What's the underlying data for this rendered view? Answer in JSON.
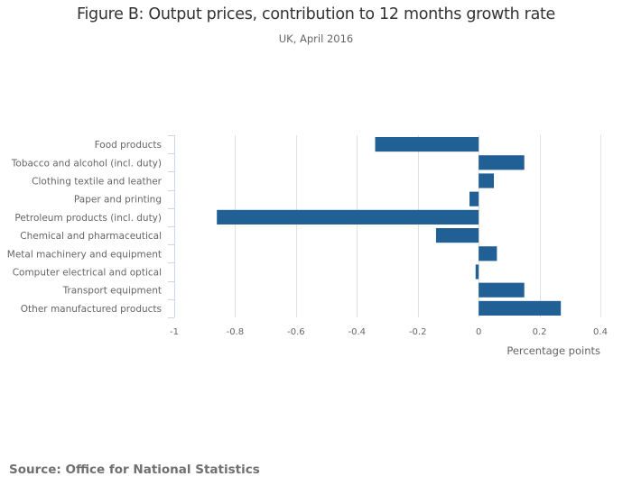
{
  "chart_data": {
    "type": "bar",
    "orientation": "horizontal",
    "title": "Figure B: Output prices, contribution to 12 months growth rate",
    "subtitle": "UK, April 2016",
    "categories": [
      "Food products",
      "Tobacco and alcohol (incl. duty)",
      "Clothing textile and leather",
      "Paper and printing",
      "Petroleum products (incl. duty)",
      "Chemical and pharmaceutical",
      "Metal machinery and equipment",
      "Computer electrical and optical",
      "Transport equipment",
      "Other manufactured products"
    ],
    "values": [
      -0.34,
      0.15,
      0.05,
      -0.03,
      -0.86,
      -0.14,
      0.06,
      -0.01,
      0.15,
      0.27
    ],
    "xlabel": "Percentage points",
    "ylabel": "",
    "xlim": [
      -1,
      0.4
    ],
    "xticks": [
      -1,
      -0.8,
      -0.6,
      -0.4,
      -0.2,
      0,
      0.2,
      0.4
    ],
    "xtick_labels": [
      "-1",
      "-0.8",
      "-0.6",
      "-0.4",
      "-0.2",
      "0",
      "0.2",
      "0.4"
    ],
    "grid": true,
    "legend": "none",
    "bar_color": "#206095",
    "grid_color": "#e0e0e0",
    "axis_color": "#ccd6eb"
  },
  "source": "Source: Office for National Statistics"
}
